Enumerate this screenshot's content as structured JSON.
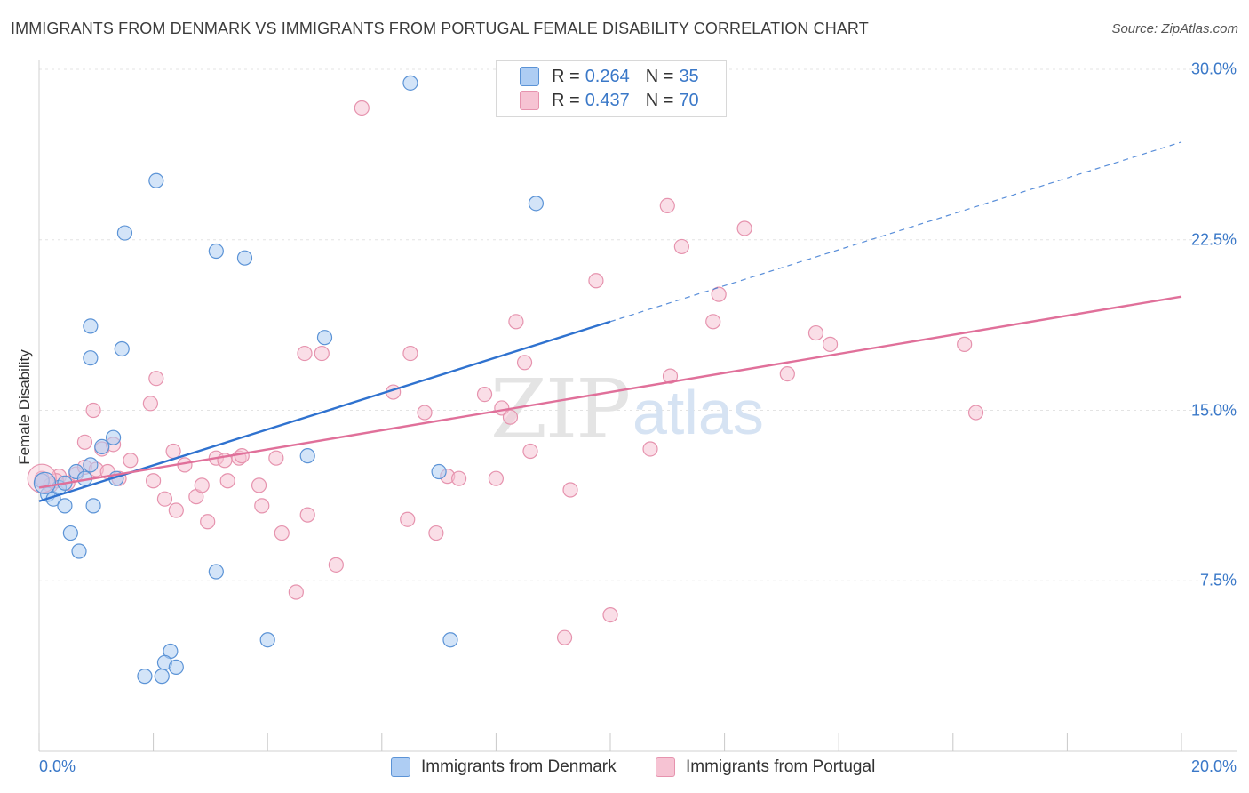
{
  "title": "IMMIGRANTS FROM DENMARK VS IMMIGRANTS FROM PORTUGAL FEMALE DISABILITY CORRELATION CHART",
  "source": "Source: ZipAtlas.com",
  "watermark": {
    "zip": "ZIP",
    "atlas": "atlas"
  },
  "legend": {
    "rows": [
      {
        "r_label": "R =",
        "r_value": "0.264",
        "n_label": "N =",
        "n_value": "35"
      },
      {
        "r_label": "R =",
        "r_value": "0.437",
        "n_label": "N =",
        "n_value": "70"
      }
    ]
  },
  "colors": {
    "denmark_fill": "#aecdf3",
    "denmark_stroke": "#5b93d6",
    "denmark_line": "#2f72cf",
    "portugal_fill": "#f6c3d3",
    "portugal_stroke": "#e693ae",
    "portugal_line": "#e0709a",
    "grid": "#e3e3e3",
    "tick_text": "#3a78c8"
  },
  "chart_data": {
    "type": "scatter",
    "title": "IMMIGRANTS FROM DENMARK VS IMMIGRANTS FROM PORTUGAL FEMALE DISABILITY CORRELATION CHART",
    "xlabel": "",
    "ylabel": "Female Disability",
    "xlim": [
      0,
      20
    ],
    "ylim": [
      0,
      30
    ],
    "x_tick_labels": [
      "0.0%",
      "20.0%"
    ],
    "y_ticks": [
      7.5,
      15.0,
      22.5,
      30.0
    ],
    "y_tick_labels": [
      "7.5%",
      "15.0%",
      "22.5%",
      "30.0%"
    ],
    "grid": true,
    "legend_position": "top-center",
    "series": [
      {
        "name": "Immigrants from Denmark",
        "r": 0.264,
        "n": 35,
        "trend": {
          "x0": 0.0,
          "y0": 11.0,
          "x1": 10.0,
          "y1": 18.9,
          "dashed_to_x": 20.0,
          "dashed_to_y": 26.8
        },
        "points": [
          [
            0.05,
            11.9
          ],
          [
            0.15,
            11.3
          ],
          [
            0.25,
            11.1
          ],
          [
            0.35,
            11.6
          ],
          [
            0.45,
            11.8
          ],
          [
            0.55,
            9.6
          ],
          [
            0.45,
            10.8
          ],
          [
            0.65,
            12.3
          ],
          [
            0.8,
            12.0
          ],
          [
            0.9,
            12.6
          ],
          [
            0.7,
            8.8
          ],
          [
            0.95,
            10.8
          ],
          [
            1.35,
            12.0
          ],
          [
            1.3,
            13.8
          ],
          [
            1.1,
            13.4
          ],
          [
            1.5,
            22.8
          ],
          [
            0.9,
            18.7
          ],
          [
            1.45,
            17.7
          ],
          [
            0.9,
            17.3
          ],
          [
            2.05,
            25.1
          ],
          [
            3.1,
            22.0
          ],
          [
            3.6,
            21.7
          ],
          [
            5.0,
            18.2
          ],
          [
            6.5,
            29.4
          ],
          [
            8.7,
            24.1
          ],
          [
            4.7,
            13.0
          ],
          [
            7.0,
            12.3
          ],
          [
            7.2,
            4.9
          ],
          [
            4.0,
            4.9
          ],
          [
            3.1,
            7.9
          ],
          [
            2.3,
            4.4
          ],
          [
            2.2,
            3.9
          ],
          [
            2.4,
            3.7
          ],
          [
            1.85,
            3.3
          ],
          [
            2.15,
            3.3
          ]
        ]
      },
      {
        "name": "Immigrants from Portugal",
        "r": 0.437,
        "n": 70,
        "trend": {
          "x0": 0.0,
          "y0": 11.6,
          "x1": 20.0,
          "y1": 20.0
        },
        "points": [
          [
            0.05,
            12.0
          ],
          [
            0.2,
            11.7
          ],
          [
            0.35,
            12.1
          ],
          [
            0.5,
            11.8
          ],
          [
            0.65,
            12.2
          ],
          [
            0.8,
            12.5
          ],
          [
            1.0,
            12.4
          ],
          [
            1.2,
            12.3
          ],
          [
            1.4,
            12.0
          ],
          [
            1.1,
            13.3
          ],
          [
            0.8,
            13.6
          ],
          [
            0.95,
            15.0
          ],
          [
            1.6,
            12.8
          ],
          [
            1.95,
            15.3
          ],
          [
            2.05,
            16.4
          ],
          [
            2.35,
            13.2
          ],
          [
            2.55,
            12.6
          ],
          [
            2.2,
            11.1
          ],
          [
            2.4,
            10.6
          ],
          [
            2.75,
            11.2
          ],
          [
            2.85,
            11.7
          ],
          [
            2.95,
            10.1
          ],
          [
            3.1,
            12.9
          ],
          [
            3.25,
            12.8
          ],
          [
            3.3,
            11.9
          ],
          [
            3.5,
            12.9
          ],
          [
            3.55,
            13.0
          ],
          [
            3.85,
            11.7
          ],
          [
            3.9,
            10.8
          ],
          [
            4.15,
            12.9
          ],
          [
            4.25,
            9.6
          ],
          [
            4.5,
            7.0
          ],
          [
            4.65,
            17.5
          ],
          [
            4.7,
            10.4
          ],
          [
            4.95,
            17.5
          ],
          [
            5.2,
            8.2
          ],
          [
            5.65,
            28.3
          ],
          [
            6.2,
            15.8
          ],
          [
            6.45,
            10.2
          ],
          [
            6.5,
            17.5
          ],
          [
            6.75,
            14.9
          ],
          [
            6.95,
            9.6
          ],
          [
            7.15,
            12.1
          ],
          [
            7.35,
            12.0
          ],
          [
            7.8,
            15.7
          ],
          [
            8.0,
            12.0
          ],
          [
            8.1,
            15.1
          ],
          [
            8.25,
            14.7
          ],
          [
            8.35,
            18.9
          ],
          [
            8.5,
            17.1
          ],
          [
            8.6,
            13.2
          ],
          [
            9.3,
            11.5
          ],
          [
            9.2,
            5.0
          ],
          [
            9.75,
            20.7
          ],
          [
            10.0,
            6.0
          ],
          [
            10.7,
            13.3
          ],
          [
            11.0,
            24.0
          ],
          [
            11.05,
            16.5
          ],
          [
            11.25,
            22.2
          ],
          [
            11.8,
            18.9
          ],
          [
            11.9,
            20.1
          ],
          [
            12.35,
            23.0
          ],
          [
            13.1,
            16.6
          ],
          [
            13.6,
            18.4
          ],
          [
            13.85,
            17.9
          ],
          [
            16.2,
            17.9
          ],
          [
            16.4,
            14.9
          ],
          [
            1.3,
            13.5
          ],
          [
            0.3,
            11.9
          ],
          [
            2.0,
            11.9
          ]
        ]
      }
    ]
  }
}
